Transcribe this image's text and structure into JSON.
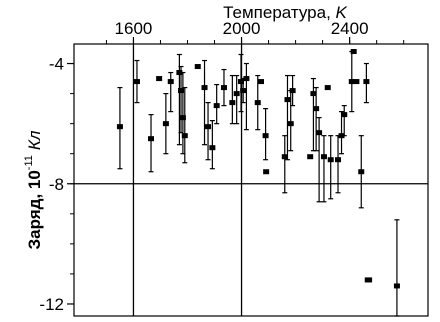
{
  "chart_data": {
    "type": "scatter",
    "x_axis_title": "Температура, ",
    "x_axis_unit": "K",
    "y_axis_title": "Заряд, 10",
    "y_axis_exponent": "-11",
    "y_axis_unit": "Кл",
    "xlim": [
      1380,
      2690
    ],
    "ylim": [
      -12.4,
      -3.35
    ],
    "x_ticks": [
      {
        "value": 1600,
        "label": "1600"
      },
      {
        "value": 2000,
        "label": "2000"
      },
      {
        "value": 2400,
        "label": "2400"
      }
    ],
    "y_ticks": [
      {
        "value": -4,
        "label": "-4"
      },
      {
        "value": -8,
        "label": "-8"
      },
      {
        "value": -12,
        "label": "-12"
      }
    ],
    "reference_lines": {
      "x": [
        1600,
        2000
      ],
      "y": [
        -8
      ]
    },
    "grid": false,
    "legend": "none",
    "points": [
      {
        "x": 1550,
        "y": -6.1,
        "lo": -7.5,
        "hi": -4.8
      },
      {
        "x": 1613,
        "y": -4.6,
        "lo": -5.3,
        "hi": -3.9
      },
      {
        "x": 1665,
        "y": -6.5,
        "lo": -7.6,
        "hi": -5.7
      },
      {
        "x": 1695,
        "y": -4.5,
        "lo": null,
        "hi": null
      },
      {
        "x": 1720,
        "y": -6.0,
        "lo": -7.0,
        "hi": -5.0
      },
      {
        "x": 1738,
        "y": -4.6,
        "lo": -5.6,
        "hi": -4.3
      },
      {
        "x": 1770,
        "y": -4.3,
        "lo": -6.7,
        "hi": -3.7
      },
      {
        "x": 1776,
        "y": -4.9,
        "lo": -6.3,
        "hi": -4.1
      },
      {
        "x": 1783,
        "y": -5.8,
        "lo": -7.0,
        "hi": -4.3
      },
      {
        "x": 1790,
        "y": -6.4,
        "lo": -7.3,
        "hi": -4.8
      },
      {
        "x": 1838,
        "y": -4.1,
        "lo": null,
        "hi": null
      },
      {
        "x": 1863,
        "y": -4.8,
        "lo": -6.7,
        "hi": -3.9
      },
      {
        "x": 1876,
        "y": -6.1,
        "lo": -7.2,
        "hi": -5.3
      },
      {
        "x": 1892,
        "y": -6.8,
        "lo": -7.5,
        "hi": -5.9
      },
      {
        "x": 1908,
        "y": -5.4,
        "lo": -6.0,
        "hi": -4.7
      },
      {
        "x": 1935,
        "y": -4.8,
        "lo": -5.4,
        "hi": -4.2
      },
      {
        "x": 1966,
        "y": -5.3,
        "lo": -6.0,
        "hi": -4.4
      },
      {
        "x": 1982,
        "y": -5.0,
        "lo": -6.0,
        "hi": -4.4
      },
      {
        "x": 1998,
        "y": -4.6,
        "lo": -5.6,
        "hi": -3.7
      },
      {
        "x": 2006,
        "y": -4.9,
        "lo": -5.3,
        "hi": -4.5
      },
      {
        "x": 2018,
        "y": -4.5,
        "lo": -6.2,
        "hi": -4.0
      },
      {
        "x": 2060,
        "y": -5.3,
        "lo": -6.2,
        "hi": -4.4
      },
      {
        "x": 2072,
        "y": -4.6,
        "lo": null,
        "hi": null
      },
      {
        "x": 2089,
        "y": -6.4,
        "lo": -7.2,
        "hi": -5.5
      },
      {
        "x": 2091,
        "y": -7.6,
        "lo": null,
        "hi": null
      },
      {
        "x": 2160,
        "y": -7.1,
        "lo": -8.3,
        "hi": -6.4
      },
      {
        "x": 2170,
        "y": -5.2,
        "lo": -7.2,
        "hi": -4.4
      },
      {
        "x": 2182,
        "y": -6.0,
        "lo": -6.9,
        "hi": -4.9
      },
      {
        "x": 2189,
        "y": -4.9,
        "lo": -5.4,
        "hi": -4.4
      },
      {
        "x": 2254,
        "y": -7.1,
        "lo": null,
        "hi": null
      },
      {
        "x": 2266,
        "y": -5.0,
        "lo": -6.9,
        "hi": -4.5
      },
      {
        "x": 2276,
        "y": -5.5,
        "lo": -6.9,
        "hi": -4.8
      },
      {
        "x": 2287,
        "y": -6.3,
        "lo": -8.6,
        "hi": -5.8
      },
      {
        "x": 2305,
        "y": -7.1,
        "lo": -8.6,
        "hi": -6.4
      },
      {
        "x": 2319,
        "y": -4.8,
        "lo": null,
        "hi": null
      },
      {
        "x": 2330,
        "y": -7.2,
        "lo": -8.5,
        "hi": -6.4
      },
      {
        "x": 2357,
        "y": -7.2,
        "lo": -8.3,
        "hi": -6.4
      },
      {
        "x": 2370,
        "y": -6.4,
        "lo": -7.0,
        "hi": -5.6
      },
      {
        "x": 2380,
        "y": -5.7,
        "lo": -6.4,
        "hi": -5.4
      },
      {
        "x": 2408,
        "y": -4.6,
        "lo": -5.6,
        "hi": -3.6
      },
      {
        "x": 2415,
        "y": -3.6,
        "lo": null,
        "hi": null
      },
      {
        "x": 2425,
        "y": -4.6,
        "lo": null,
        "hi": null
      },
      {
        "x": 2443,
        "y": -7.6,
        "lo": -8.8,
        "hi": -6.4
      },
      {
        "x": 2462,
        "y": -4.6,
        "lo": -5.3,
        "hi": -4.0
      },
      {
        "x": 2467,
        "y": -11.2,
        "lo": null,
        "hi": null
      },
      {
        "x": 2472,
        "y": -11.2,
        "lo": null,
        "hi": null
      },
      {
        "x": 2575,
        "y": -11.4,
        "lo": -12.4,
        "hi": -9.2
      }
    ]
  }
}
